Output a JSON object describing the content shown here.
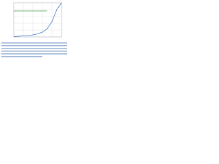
{
  "chart_data": {
    "type": "line",
    "x": [
      0,
      1,
      2,
      3,
      4,
      5,
      6,
      7,
      8,
      9,
      10
    ],
    "series": [
      {
        "color": "#3a9c3a",
        "values": [
          7.6,
          7.6,
          7.6,
          7.6,
          7.6,
          7.6,
          7.6,
          7.6,
          null,
          null,
          null
        ]
      },
      {
        "color": "#3c78c8",
        "values": [
          0.1,
          0.2,
          0.3,
          0.4,
          0.6,
          0.9,
          1.4,
          2.4,
          4.5,
          8,
          10
        ]
      }
    ],
    "xlim": [
      0,
      10
    ],
    "ylim": [
      0,
      10
    ],
    "xticks": [
      0,
      2,
      4,
      6,
      8,
      10
    ],
    "yticks": [
      0,
      2,
      4,
      6,
      8,
      10
    ],
    "grid": true
  }
}
